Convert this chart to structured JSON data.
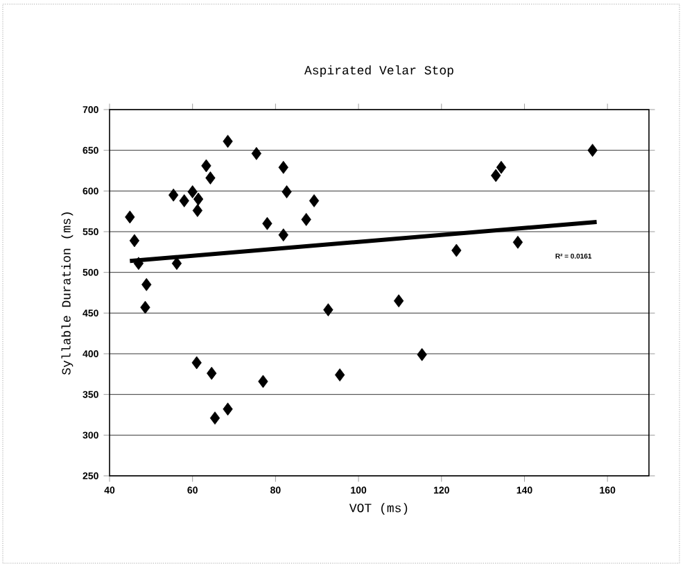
{
  "chart_data": {
    "type": "scatter",
    "title": "Aspirated Velar Stop",
    "xlabel": "VOT (ms)",
    "ylabel": "Syllable Duration (ms)",
    "xlim": [
      40,
      170
    ],
    "xticks": [
      40,
      60,
      80,
      100,
      120,
      140,
      160
    ],
    "ylim": [
      250,
      700
    ],
    "yticks": [
      250,
      300,
      350,
      400,
      450,
      500,
      550,
      600,
      650,
      700
    ],
    "grid": "y",
    "series": [
      {
        "marker": "diamond",
        "color": "#000000",
        "x": [
          44.9,
          46,
          47,
          48.9,
          48.6,
          55.4,
          56.2,
          58,
          60,
          61.4,
          61.2,
          63.3,
          64.3,
          68.5,
          75.4,
          78,
          81.9,
          82.7,
          81.9,
          87.4,
          89.3,
          61,
          64.6,
          65.4,
          68.5,
          77,
          92.7,
          95.5,
          109.7,
          115.3,
          123.6,
          133.1,
          134.4,
          138.4,
          156.4
        ],
        "values": [
          568,
          539,
          511,
          485,
          457,
          595,
          511,
          588,
          599,
          590,
          576,
          631,
          616,
          661,
          646,
          560,
          629,
          599,
          546,
          565,
          588,
          389,
          376,
          321,
          332,
          366,
          454,
          374,
          465,
          399,
          527,
          619,
          629,
          537,
          650
        ]
      },
      {
        "type": "line",
        "marker": "none",
        "color": "#000000",
        "x": [
          44.9,
          157.4
        ],
        "values": [
          514,
          562
        ]
      }
    ],
    "annotations": [
      "R² = 0.0161"
    ]
  }
}
